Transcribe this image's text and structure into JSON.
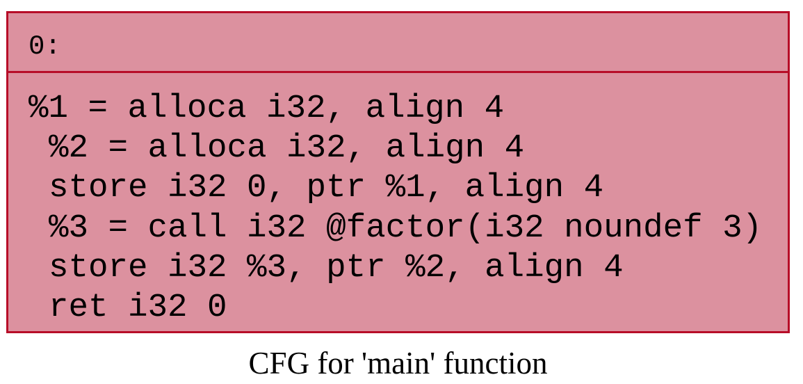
{
  "cfg": {
    "caption": "CFG for 'main' function",
    "node": {
      "label": "0:",
      "fill_color": "#dc919f",
      "border_color": "#b70d28",
      "instructions": [
        "%1 = alloca i32, align 4",
        "%2 = alloca i32, align 4",
        "store i32 0, ptr %1, align 4",
        "%3 = call i32 @factor(i32 noundef 3)",
        "store i32 %3, ptr %2, align 4",
        "ret i32 0"
      ]
    }
  }
}
